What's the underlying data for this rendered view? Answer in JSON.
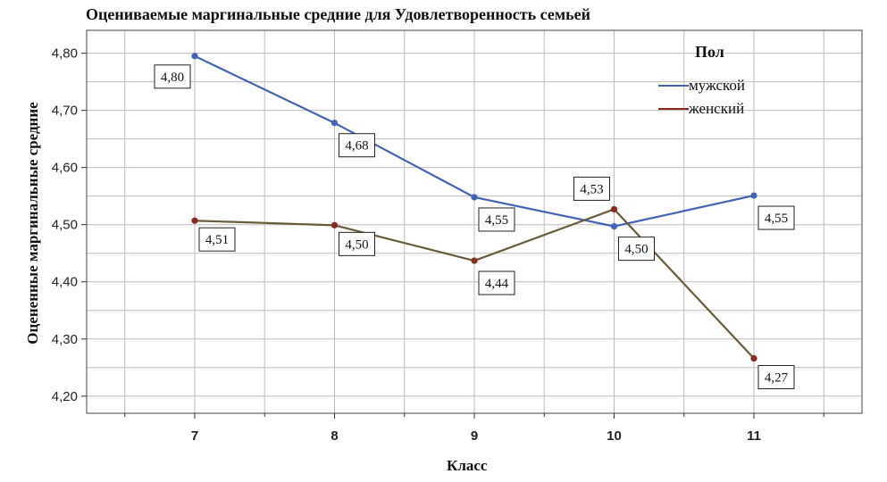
{
  "chart_data": {
    "type": "line",
    "title": "Оцениваемые маргинальные средние для Удовлетворенность семьей",
    "xlabel": "Класс",
    "ylabel": "Оцененные маргинальные средние",
    "categories": [
      "7",
      "8",
      "9",
      "10",
      "11"
    ],
    "ylim": [
      4.17,
      4.84
    ],
    "yticks": [
      4.2,
      4.3,
      4.4,
      4.5,
      4.6,
      4.7,
      4.8
    ],
    "ytick_labels": [
      "4,20",
      "4,30",
      "4,40",
      "4,50",
      "4,60",
      "4,70",
      "4,80"
    ],
    "grid": true,
    "legend": {
      "title": "Пол",
      "position": "top-right"
    },
    "series": [
      {
        "name": "мужской",
        "color": "#4363b8",
        "values": [
          4.795,
          4.678,
          4.548,
          4.497,
          4.551
        ],
        "data_labels": [
          "4,80",
          "4,68",
          "4,55",
          "4,50",
          "4,55"
        ]
      },
      {
        "name": "женский",
        "color": "#8b2a1e",
        "values": [
          4.507,
          4.499,
          4.437,
          4.527,
          4.266
        ],
        "data_labels": [
          "4,51",
          "4,50",
          "4,44",
          "4,53",
          "4,27"
        ]
      }
    ]
  }
}
